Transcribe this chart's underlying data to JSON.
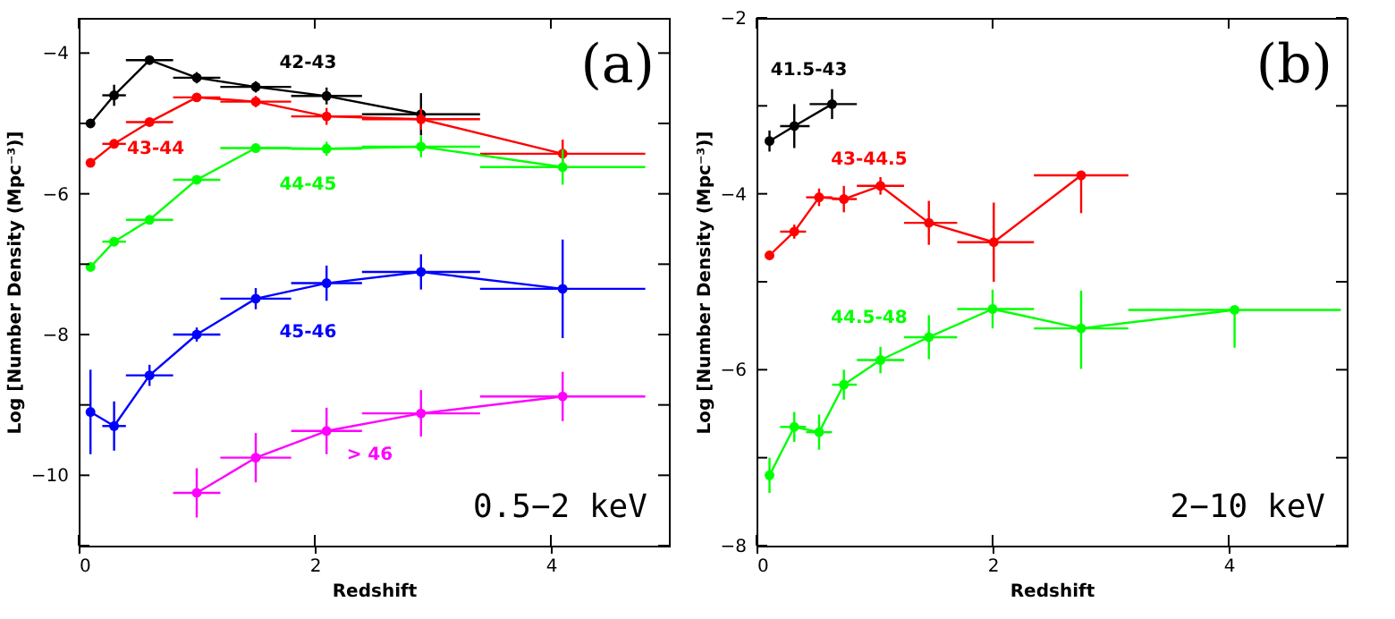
{
  "chart_data": [
    {
      "type": "line",
      "xlabel": "Redshift",
      "ylabel": "Log [Number Density (Mpc⁻³)]",
      "xlim": [
        0,
        5
      ],
      "ylim": [
        -11,
        -3.5
      ],
      "xticks": [
        0,
        2,
        4
      ],
      "yticks": [
        {
          "value": -11,
          "label": null
        },
        -10,
        {
          "value": -9,
          "label": null
        },
        -8,
        {
          "value": -7,
          "label": null
        },
        -6,
        {
          "value": -5,
          "label": null
        },
        -4
      ],
      "grid": false,
      "marker": "circle",
      "series": [
        {
          "color": "#000000",
          "x": [
            0.1,
            0.3,
            0.6,
            1.0,
            1.5,
            2.1,
            2.9
          ],
          "values": [
            -5.0,
            -4.6,
            -4.1,
            -4.35,
            -4.48,
            -4.61,
            -4.87
          ],
          "errors": [
            0.05,
            0.15,
            0.05,
            0.08,
            0.08,
            0.12,
            0.3
          ],
          "xerrors": [
            null,
            [
              0.2,
              0.4
            ],
            [
              0.4,
              0.8
            ],
            [
              0.8,
              1.2
            ],
            [
              1.2,
              1.8
            ],
            [
              1.8,
              2.4
            ],
            [
              2.4,
              3.4
            ]
          ]
        },
        {
          "color": "#ff0000",
          "x": [
            0.1,
            0.3,
            0.6,
            1.0,
            1.5,
            2.1,
            2.9,
            4.1
          ],
          "values": [
            -5.56,
            -5.29,
            -4.98,
            -4.63,
            -4.69,
            -4.9,
            -4.94,
            -5.43
          ],
          "errors": [
            0.05,
            0.05,
            0.05,
            0.05,
            0.08,
            0.12,
            0.15,
            0.2
          ],
          "xerrors": [
            null,
            [
              0.2,
              0.4
            ],
            [
              0.4,
              0.8
            ],
            [
              0.8,
              1.2
            ],
            [
              1.2,
              1.8
            ],
            [
              1.8,
              2.4
            ],
            [
              2.4,
              3.4
            ],
            [
              3.4,
              4.8
            ]
          ]
        },
        {
          "color": "#00ff00",
          "x": [
            0.1,
            0.3,
            0.6,
            1.0,
            1.5,
            2.1,
            2.9,
            4.1
          ],
          "values": [
            -7.04,
            -6.68,
            -6.37,
            -5.8,
            -5.35,
            -5.36,
            -5.33,
            -5.62
          ],
          "errors": [
            0.05,
            0.05,
            0.05,
            0.05,
            0.05,
            0.1,
            0.15,
            0.25
          ],
          "xerrors": [
            null,
            [
              0.2,
              0.4
            ],
            [
              0.4,
              0.8
            ],
            [
              0.8,
              1.2
            ],
            [
              1.2,
              1.8
            ],
            [
              1.8,
              2.4
            ],
            [
              2.4,
              3.4
            ],
            [
              3.4,
              4.8
            ]
          ]
        },
        {
          "color": "#0000ff",
          "x": [
            0.1,
            0.3,
            0.6,
            1.0,
            1.5,
            2.1,
            2.9,
            4.1
          ],
          "values": [
            -9.1,
            -9.3,
            -8.58,
            -8.0,
            -7.49,
            -7.27,
            -7.11,
            -7.35
          ],
          "errors": [
            0.6,
            0.35,
            0.15,
            0.1,
            0.15,
            0.25,
            0.25,
            0.7
          ],
          "xerrors": [
            null,
            [
              0.2,
              0.4
            ],
            [
              0.4,
              0.8
            ],
            [
              0.8,
              1.2
            ],
            [
              1.2,
              1.8
            ],
            [
              1.8,
              2.4
            ],
            [
              2.4,
              3.4
            ],
            [
              3.4,
              4.8
            ]
          ]
        },
        {
          "color": "#ff00ff",
          "x": [
            1.0,
            1.5,
            2.1,
            2.9,
            4.1
          ],
          "values": [
            -10.25,
            -9.75,
            -9.37,
            -9.12,
            -8.88
          ],
          "errors": [
            0.35,
            0.35,
            0.33,
            0.33,
            0.35
          ],
          "xerrors": [
            [
              0.8,
              1.2
            ],
            [
              1.2,
              1.8
            ],
            [
              1.8,
              2.4
            ],
            [
              2.4,
              3.4
            ],
            [
              3.4,
              4.8
            ]
          ]
        }
      ],
      "annotations": [
        "42-43",
        "43-44",
        "44-45",
        "45-46",
        "> 46",
        "(a)",
        "0.5−2 keV"
      ]
    },
    {
      "type": "line",
      "xlabel": "Redshift",
      "ylabel": "Log [Number Density (Mpc⁻³)]",
      "xlim": [
        0,
        5
      ],
      "ylim": [
        -8,
        -2
      ],
      "xticks": [
        0,
        2,
        4
      ],
      "yticks": [
        -8,
        {
          "value": -7,
          "label": null
        },
        -6,
        {
          "value": -5,
          "label": null
        },
        -4,
        {
          "value": -3,
          "label": null
        },
        -2
      ],
      "grid": false,
      "marker": "circle",
      "series": [
        {
          "color": "#000000",
          "x": [
            0.11,
            0.32,
            0.64
          ],
          "values": [
            -3.4,
            -3.23,
            -2.98
          ],
          "errors": [
            0.12,
            0.25,
            0.17
          ],
          "xerrors": [
            null,
            [
              0.2,
              0.45
            ],
            [
              0.45,
              0.85
            ]
          ]
        },
        {
          "color": "#ff0000",
          "x": [
            0.11,
            0.32,
            0.53,
            0.74,
            1.05,
            1.46,
            2.01,
            2.75
          ],
          "values": [
            -4.7,
            -4.43,
            -4.04,
            -4.06,
            -3.91,
            -4.33,
            -4.55,
            -3.79
          ],
          "errors": [
            0.05,
            0.08,
            0.1,
            0.15,
            0.1,
            0.25,
            0.45,
            [
              -4.22,
              -3.79
            ]
          ],
          "xerrors": [
            null,
            [
              0.2,
              0.42
            ],
            [
              0.42,
              0.64
            ],
            [
              0.64,
              0.85
            ],
            [
              0.85,
              1.25
            ],
            [
              1.25,
              1.7
            ],
            [
              1.7,
              2.35
            ],
            [
              2.35,
              3.15
            ]
          ]
        },
        {
          "color": "#00ff00",
          "x": [
            0.11,
            0.32,
            0.53,
            0.74,
            1.05,
            1.46,
            2.0,
            2.75,
            4.05
          ],
          "values": [
            -7.2,
            -6.65,
            -6.71,
            -6.17,
            -5.89,
            -5.63,
            -5.31,
            -5.53,
            -5.32
          ],
          "errors": [
            0.2,
            0.17,
            0.2,
            0.17,
            0.15,
            0.25,
            0.22,
            [
              -5.99,
              -5.1
            ],
            [
              -5.75,
              -5.32
            ]
          ],
          "xerrors": [
            null,
            [
              0.2,
              0.42
            ],
            [
              0.42,
              0.64
            ],
            [
              0.64,
              0.85
            ],
            [
              0.85,
              1.25
            ],
            [
              1.25,
              1.7
            ],
            [
              1.7,
              2.35
            ],
            [
              2.35,
              3.15
            ],
            [
              3.15,
              4.95
            ]
          ]
        }
      ],
      "annotations": [
        "41.5-43",
        "43-44.5",
        "44.5-48",
        "(b)",
        "2−10 keV"
      ]
    }
  ]
}
